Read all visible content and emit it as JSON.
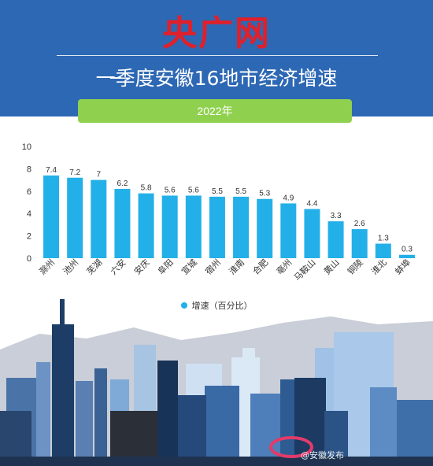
{
  "header": {
    "logo": "央广网",
    "title": "一季度安徽16地市经济增速",
    "year": "2022年"
  },
  "legend": {
    "label": "增速（百分比）"
  },
  "watermark": "@安徽发布",
  "colors": {
    "header_bg": "#2d68b4",
    "logo": "#e0202a",
    "bar": "#23b0e8",
    "year_pill": "#8fd14f"
  },
  "chart_data": {
    "type": "bar",
    "categories": [
      "滁州",
      "池州",
      "芜湖",
      "六安",
      "安庆",
      "阜阳",
      "宣城",
      "宿州",
      "淮南",
      "合肥",
      "亳州",
      "马鞍山",
      "黄山",
      "铜陵",
      "淮北",
      "蚌埠"
    ],
    "series": [
      {
        "name": "增速（百分比）",
        "values": [
          7.4,
          7.2,
          7,
          6.2,
          5.8,
          5.6,
          5.6,
          5.5,
          5.5,
          5.3,
          4.9,
          4.4,
          3.3,
          2.6,
          1.3,
          0.3
        ]
      }
    ],
    "data_labels": [
      "7.4",
      "7.2",
      "7",
      "6.2",
      "5.8",
      "5.6",
      "5.6",
      "5.5",
      "5.5",
      "5.3",
      "4.9",
      "4.4",
      "3.3",
      "2.6",
      "1.3",
      "0.3"
    ],
    "y_ticks": [
      "0",
      "2",
      "4",
      "6",
      "8",
      "10"
    ],
    "ylim": [
      0,
      10
    ],
    "grid": false,
    "legend_position": "bottom"
  }
}
